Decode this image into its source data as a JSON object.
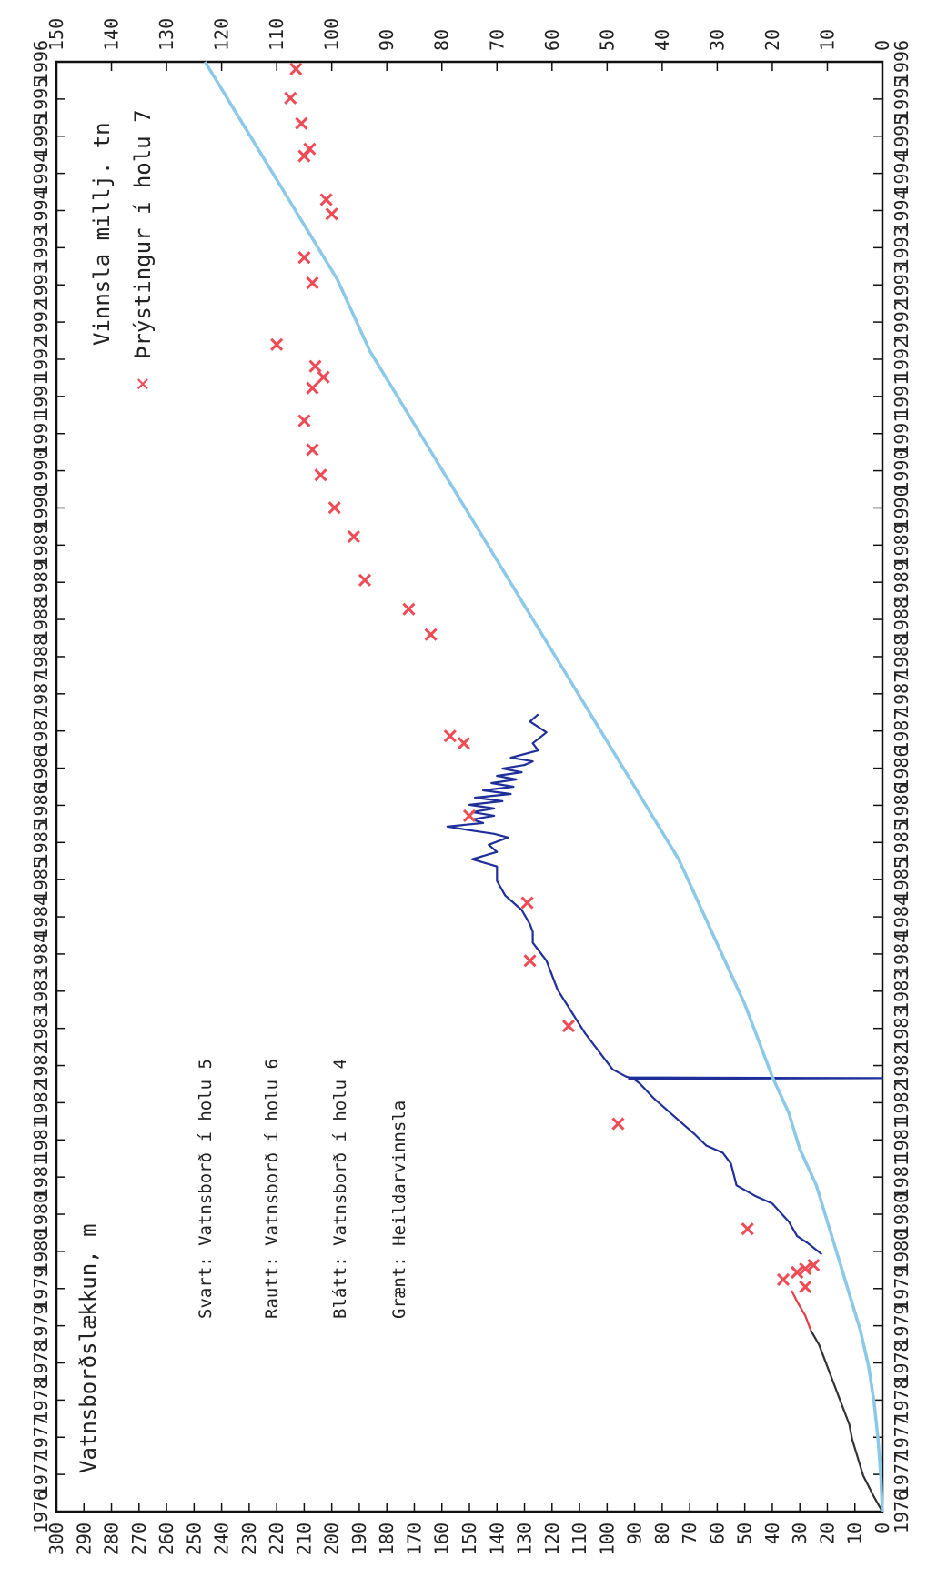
{
  "chart_data": {
    "type": "line",
    "orientation": "rotated-90-clockwise",
    "x_axis": {
      "label": "",
      "ticks": [
        "1976",
        "1977",
        "1977",
        "1978",
        "1978",
        "1979",
        "1979",
        "1980",
        "1980",
        "1981",
        "1981",
        "1982",
        "1982",
        "1983",
        "1983",
        "1984",
        "1984",
        "1985",
        "1985",
        "1986",
        "1986",
        "1987",
        "1987",
        "1988",
        "1988",
        "1989",
        "1989",
        "1990",
        "1990",
        "1991",
        "1991",
        "1992",
        "1992",
        "1993",
        "1993",
        "1994",
        "1994",
        "1995",
        "1995",
        "1996"
      ],
      "range": [
        1976.0,
        1996.0
      ]
    },
    "y_left": {
      "label": "Vatnsborðslækkun, m",
      "ticks": [
        "0",
        "10",
        "20",
        "30",
        "40",
        "50",
        "60",
        "70",
        "80",
        "90",
        "100",
        "110",
        "120",
        "130",
        "140",
        "150",
        "160",
        "170",
        "180",
        "190",
        "200",
        "210",
        "220",
        "230",
        "240",
        "250",
        "260",
        "270",
        "280",
        "290",
        "300"
      ],
      "range": [
        0,
        300
      ]
    },
    "y_right": {
      "label": "Vinnsla millj. tn",
      "ticks": [
        "0",
        "10",
        "20",
        "30",
        "40",
        "50",
        "60",
        "70",
        "80",
        "90",
        "100",
        "110",
        "120",
        "130",
        "140",
        "150"
      ],
      "range": [
        0,
        150
      ]
    },
    "annotations": {
      "svart": "Svart: Vatnsborð í holu 5",
      "rautt": "Rautt: Vatnsborð í holu 6",
      "blatt": "Blátt: Vatnsborð í holu 4",
      "graent": "Grænt: Heildarvinnsla"
    },
    "legend": {
      "marker": "×",
      "label": "Þrýstingur í holu 7",
      "placement": "top-left"
    },
    "series": [
      {
        "name": "Vatnsborð í holu 5",
        "color": "#333333",
        "axis": "left",
        "x": [
          1976.0,
          1976.2,
          1976.5,
          1977.0,
          1977.2,
          1977.5,
          1977.8,
          1978.0,
          1978.3,
          1978.5
        ],
        "y": [
          0,
          3,
          7,
          11,
          12,
          15,
          18,
          20,
          23,
          26
        ]
      },
      {
        "name": "Vatnsborð í holu 6",
        "color": "#e83a4a",
        "axis": "left",
        "x": [
          1978.5,
          1978.7,
          1978.9,
          1979.05
        ],
        "y": [
          26,
          28,
          31,
          33
        ]
      },
      {
        "name": "Vatnsborð í holu 4",
        "color": "#1f2f99",
        "axis": "left",
        "x": [
          1979.55,
          1979.7,
          1979.8,
          1980.0,
          1980.25,
          1980.35,
          1980.5,
          1980.8,
          1980.95,
          1981.05,
          1981.2,
          1981.5,
          1981.7,
          1981.9,
          1981.96,
          1981.97,
          1981.98,
          1981.99,
          1982.0,
          1982.1,
          1982.3,
          1982.6,
          1982.9,
          1983.2,
          1983.6,
          1983.85,
          1984.0,
          1984.1,
          1984.3,
          1984.5,
          1984.7,
          1984.9,
          1985.0,
          1985.1,
          1985.2,
          1985.3,
          1985.35,
          1985.4,
          1985.45,
          1985.5,
          1985.55,
          1985.6,
          1985.65,
          1985.7,
          1985.75,
          1985.8,
          1985.85,
          1985.9,
          1985.95,
          1986.0,
          1986.05,
          1986.1,
          1986.15,
          1986.2,
          1986.25,
          1986.3,
          1986.35,
          1986.4,
          1986.45,
          1986.5,
          1986.6,
          1986.75,
          1986.9,
          1987.0
        ],
        "y": [
          22,
          27,
          31,
          34,
          40,
          46,
          53,
          55,
          58,
          64,
          68,
          77,
          83,
          88,
          90,
          92,
          0,
          92,
          93,
          98,
          102,
          108,
          113,
          118,
          122,
          127,
          127,
          128,
          131,
          137,
          140,
          140,
          149,
          140,
          143,
          136,
          141,
          150,
          158,
          145,
          149,
          141,
          149,
          141,
          150,
          138,
          148,
          135,
          145,
          134,
          142,
          133,
          140,
          131,
          138,
          130,
          127,
          135,
          130,
          125,
          127,
          122,
          128,
          125
        ]
      },
      {
        "name": "Heildarvinnsla",
        "color": "#8cc8e8",
        "axis": "right",
        "x": [
          1976.0,
          1976.5,
          1977.0,
          1977.5,
          1978.0,
          1978.5,
          1979.0,
          1979.5,
          1980.0,
          1980.5,
          1981.0,
          1981.5,
          1982.0,
          1982.5,
          1983.0,
          1983.5,
          1984.0,
          1984.5,
          1985.0,
          1985.5,
          1986.0,
          1986.5,
          1987.0,
          1987.5,
          1988.0,
          1988.5,
          1989.0,
          1989.5,
          1990.0,
          1990.5,
          1991.0,
          1991.5,
          1992.0,
          1992.5,
          1993.0,
          1993.5,
          1994.0,
          1994.5,
          1995.0,
          1995.5,
          1996.0
        ],
        "y": [
          0,
          0.3,
          0.8,
          1.5,
          2.5,
          4,
          6,
          8,
          10,
          12,
          15,
          17,
          20,
          22.5,
          25,
          28,
          31,
          34,
          37,
          41,
          45,
          49,
          53,
          57,
          61,
          65,
          69,
          73,
          77,
          81,
          85,
          89,
          93,
          96,
          99,
          103,
          107,
          111,
          115,
          119,
          123
        ]
      },
      {
        "name": "Þrýstingur í holu 7",
        "color": "#f04a55",
        "axis": "left",
        "type": "scatter",
        "x": [
          1979.1,
          1979.2,
          1979.3,
          1979.3,
          1979.35,
          1979.4,
          1979.9,
          1981.35,
          1982.7,
          1983.6,
          1984.4,
          1985.6,
          1986.6,
          1986.7,
          1988.1,
          1988.45,
          1988.85,
          1989.45,
          1989.85,
          1990.3,
          1990.65,
          1991.05,
          1991.5,
          1991.65,
          1991.8,
          1992.1,
          1992.95,
          1993.3,
          1993.9,
          1994.1,
          1994.7,
          1994.8,
          1995.15,
          1995.5,
          1995.9
        ],
        "y": [
          28,
          36,
          31,
          31,
          28,
          25,
          49,
          96,
          114,
          128,
          129,
          150,
          152,
          157,
          164,
          172,
          188,
          192,
          199,
          204,
          207,
          210,
          207,
          203,
          206,
          220,
          207,
          210,
          200,
          202,
          210,
          208,
          211,
          215,
          213
        ]
      }
    ]
  }
}
